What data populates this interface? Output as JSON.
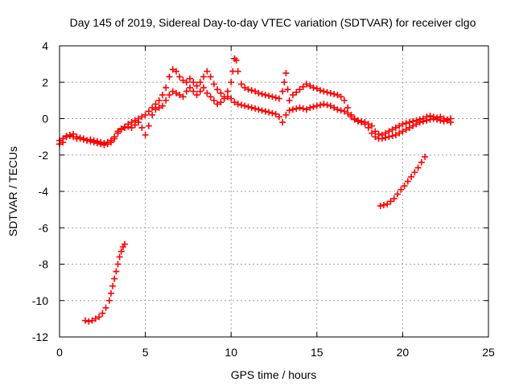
{
  "chart_data": {
    "type": "scatter",
    "title": "Day 145 of 2019, Sidereal Day-to-day VTEC variation (SDTVAR) for receiver clgo",
    "xlabel": "GPS time / hours",
    "ylabel": "SDTVAR / TECUs",
    "xlim": [
      0,
      25
    ],
    "ylim": [
      -12,
      4
    ],
    "xticks": [
      0,
      5,
      10,
      15,
      20,
      25
    ],
    "yticks": [
      -12,
      -10,
      -8,
      -6,
      -4,
      -2,
      0,
      2,
      4
    ],
    "grid": true,
    "marker": "plus",
    "color": "#ff0000",
    "series": [
      {
        "name": "track-main-upper",
        "points": [
          [
            0.0,
            -1.2
          ],
          [
            0.2,
            -1.1
          ],
          [
            0.4,
            -0.95
          ],
          [
            0.6,
            -0.9
          ],
          [
            0.8,
            -0.85
          ],
          [
            1.0,
            -1.0
          ],
          [
            1.2,
            -1.1
          ],
          [
            1.4,
            -1.15
          ],
          [
            1.6,
            -1.2
          ],
          [
            1.8,
            -1.15
          ],
          [
            2.0,
            -1.2
          ],
          [
            2.2,
            -1.25
          ],
          [
            2.4,
            -1.3
          ],
          [
            2.6,
            -1.35
          ],
          [
            2.8,
            -1.3
          ],
          [
            3.0,
            -1.2
          ],
          [
            3.2,
            -1.1
          ],
          [
            3.4,
            -0.8
          ],
          [
            3.6,
            -0.6
          ],
          [
            3.8,
            -0.45
          ],
          [
            4.0,
            -0.3
          ],
          [
            4.2,
            -0.2
          ],
          [
            4.4,
            -0.1
          ],
          [
            4.6,
            0.0
          ],
          [
            4.8,
            0.1
          ],
          [
            5.0,
            0.2
          ],
          [
            5.2,
            0.4
          ],
          [
            5.4,
            0.6
          ],
          [
            5.6,
            0.8
          ],
          [
            5.8,
            1.0
          ],
          [
            6.0,
            1.3
          ],
          [
            6.2,
            1.7
          ],
          [
            6.4,
            2.3
          ],
          [
            6.6,
            2.7
          ],
          [
            6.8,
            2.6
          ],
          [
            7.0,
            2.3
          ],
          [
            7.2,
            2.1
          ],
          [
            7.4,
            2.0
          ],
          [
            7.6,
            2.2
          ],
          [
            7.8,
            2.0
          ],
          [
            8.0,
            1.8
          ],
          [
            8.2,
            2.0
          ],
          [
            8.4,
            2.3
          ],
          [
            8.6,
            2.6
          ],
          [
            8.8,
            2.3
          ],
          [
            9.0,
            1.9
          ],
          [
            9.2,
            1.6
          ],
          [
            9.4,
            1.4
          ],
          [
            9.6,
            1.2
          ],
          [
            9.8,
            1.5
          ],
          [
            10.0,
            2.0
          ],
          [
            10.1,
            2.6
          ],
          [
            10.2,
            3.3
          ],
          [
            10.3,
            3.2
          ],
          [
            10.4,
            2.6
          ],
          [
            10.6,
            1.9
          ],
          [
            10.8,
            1.7
          ],
          [
            11.0,
            1.6
          ],
          [
            11.2,
            1.55
          ],
          [
            11.4,
            1.5
          ],
          [
            11.6,
            1.4
          ],
          [
            11.8,
            1.35
          ],
          [
            12.0,
            1.3
          ],
          [
            12.2,
            1.25
          ],
          [
            12.4,
            1.2
          ],
          [
            12.6,
            1.15
          ],
          [
            12.8,
            1.1
          ],
          [
            13.0,
            1.5
          ],
          [
            13.1,
            2.0
          ],
          [
            13.2,
            2.5
          ],
          [
            13.3,
            1.6
          ],
          [
            13.4,
            1.0
          ],
          [
            13.6,
            1.3
          ],
          [
            13.8,
            1.45
          ],
          [
            14.0,
            1.6
          ],
          [
            14.2,
            1.75
          ],
          [
            14.4,
            1.9
          ],
          [
            14.6,
            1.8
          ],
          [
            14.8,
            1.7
          ],
          [
            15.0,
            1.65
          ],
          [
            15.2,
            1.55
          ],
          [
            15.4,
            1.5
          ],
          [
            15.6,
            1.45
          ],
          [
            15.8,
            1.4
          ],
          [
            16.0,
            1.35
          ],
          [
            16.2,
            1.3
          ],
          [
            16.4,
            1.2
          ],
          [
            16.6,
            1.0
          ],
          [
            16.8,
            0.6
          ],
          [
            17.0,
            0.2
          ],
          [
            17.2,
            0.0
          ],
          [
            17.4,
            -0.1
          ],
          [
            17.6,
            -0.15
          ],
          [
            17.8,
            -0.2
          ],
          [
            18.0,
            -0.3
          ],
          [
            18.2,
            -0.4
          ],
          [
            18.4,
            -0.7
          ],
          [
            18.6,
            -0.85
          ],
          [
            18.8,
            -0.9
          ],
          [
            19.0,
            -0.8
          ],
          [
            19.2,
            -0.7
          ],
          [
            19.4,
            -0.6
          ],
          [
            19.6,
            -0.5
          ],
          [
            19.8,
            -0.4
          ],
          [
            20.0,
            -0.3
          ],
          [
            20.2,
            -0.25
          ],
          [
            20.4,
            -0.2
          ],
          [
            20.6,
            -0.15
          ],
          [
            20.8,
            -0.1
          ],
          [
            21.0,
            -0.05
          ],
          [
            21.2,
            0.0
          ],
          [
            21.4,
            0.1
          ],
          [
            21.6,
            0.15
          ],
          [
            21.8,
            0.1
          ],
          [
            22.0,
            0.05
          ],
          [
            22.2,
            0.1
          ],
          [
            22.4,
            0.0
          ],
          [
            22.6,
            -0.05
          ],
          [
            22.8,
            0.0
          ]
        ]
      },
      {
        "name": "track-main-lower",
        "points": [
          [
            0.0,
            -1.4
          ],
          [
            0.2,
            -1.3
          ],
          [
            0.4,
            -1.0
          ],
          [
            0.6,
            -0.95
          ],
          [
            0.8,
            -1.0
          ],
          [
            1.0,
            -1.1
          ],
          [
            1.2,
            -1.05
          ],
          [
            1.4,
            -1.1
          ],
          [
            1.6,
            -1.2
          ],
          [
            1.8,
            -1.25
          ],
          [
            2.0,
            -1.3
          ],
          [
            2.2,
            -1.35
          ],
          [
            2.4,
            -1.4
          ],
          [
            2.6,
            -1.45
          ],
          [
            2.8,
            -1.4
          ],
          [
            3.0,
            -1.3
          ],
          [
            3.2,
            -1.0
          ],
          [
            3.4,
            -0.7
          ],
          [
            3.6,
            -0.55
          ],
          [
            3.8,
            -0.5
          ],
          [
            4.0,
            -0.45
          ],
          [
            4.2,
            -0.5
          ],
          [
            4.4,
            -0.35
          ],
          [
            4.6,
            -0.2
          ],
          [
            4.8,
            -0.5
          ],
          [
            5.0,
            -0.9
          ],
          [
            5.2,
            -0.4
          ],
          [
            5.4,
            0.2
          ],
          [
            5.6,
            0.5
          ],
          [
            5.8,
            0.6
          ],
          [
            6.0,
            0.7
          ],
          [
            6.2,
            1.0
          ],
          [
            6.4,
            1.3
          ],
          [
            6.6,
            1.5
          ],
          [
            6.8,
            1.4
          ],
          [
            7.0,
            1.3
          ],
          [
            7.2,
            1.2
          ],
          [
            7.4,
            1.5
          ],
          [
            7.6,
            1.7
          ],
          [
            7.8,
            1.5
          ],
          [
            8.0,
            1.3
          ],
          [
            8.2,
            1.5
          ],
          [
            8.4,
            1.7
          ],
          [
            8.6,
            1.4
          ],
          [
            8.8,
            1.2
          ],
          [
            9.0,
            1.0
          ],
          [
            9.2,
            0.8
          ],
          [
            9.4,
            0.9
          ],
          [
            9.6,
            1.1
          ],
          [
            9.8,
            1.2
          ],
          [
            10.0,
            1.1
          ],
          [
            10.2,
            0.9
          ],
          [
            10.4,
            0.8
          ],
          [
            10.6,
            0.75
          ],
          [
            10.8,
            0.7
          ],
          [
            11.0,
            0.65
          ],
          [
            11.2,
            0.6
          ],
          [
            11.4,
            0.55
          ],
          [
            11.6,
            0.5
          ],
          [
            11.8,
            0.45
          ],
          [
            12.0,
            0.4
          ],
          [
            12.2,
            0.35
          ],
          [
            12.4,
            0.3
          ],
          [
            12.6,
            0.25
          ],
          [
            12.8,
            0.1
          ],
          [
            13.0,
            -0.2
          ],
          [
            13.2,
            0.2
          ],
          [
            13.4,
            0.45
          ],
          [
            13.6,
            0.5
          ],
          [
            13.8,
            0.55
          ],
          [
            14.0,
            0.6
          ],
          [
            14.2,
            0.55
          ],
          [
            14.4,
            0.5
          ],
          [
            14.6,
            0.6
          ],
          [
            14.8,
            0.65
          ],
          [
            15.0,
            0.7
          ],
          [
            15.2,
            0.75
          ],
          [
            15.4,
            0.8
          ],
          [
            15.6,
            0.75
          ],
          [
            15.8,
            0.7
          ],
          [
            16.0,
            0.6
          ],
          [
            16.2,
            0.5
          ],
          [
            16.4,
            0.45
          ],
          [
            16.6,
            0.4
          ],
          [
            16.8,
            0.3
          ],
          [
            17.0,
            0.1
          ],
          [
            17.2,
            -0.05
          ],
          [
            17.4,
            -0.15
          ],
          [
            17.6,
            -0.2
          ],
          [
            17.8,
            -0.3
          ],
          [
            18.0,
            -0.5
          ],
          [
            18.2,
            -0.8
          ],
          [
            18.4,
            -1.0
          ],
          [
            18.6,
            -1.1
          ],
          [
            18.8,
            -1.1
          ],
          [
            19.0,
            -1.05
          ],
          [
            19.2,
            -1.0
          ],
          [
            19.4,
            -0.95
          ],
          [
            19.6,
            -0.9
          ],
          [
            19.8,
            -0.8
          ],
          [
            20.0,
            -0.7
          ],
          [
            20.2,
            -0.6
          ],
          [
            20.4,
            -0.5
          ],
          [
            20.6,
            -0.4
          ],
          [
            20.8,
            -0.3
          ],
          [
            21.0,
            -0.2
          ],
          [
            21.2,
            -0.15
          ],
          [
            21.4,
            -0.1
          ],
          [
            21.6,
            -0.05
          ],
          [
            21.8,
            0.0
          ],
          [
            22.0,
            -0.05
          ],
          [
            22.2,
            -0.1
          ],
          [
            22.4,
            -0.15
          ],
          [
            22.6,
            -0.1
          ],
          [
            22.8,
            -0.2
          ]
        ]
      },
      {
        "name": "track-early-drop",
        "points": [
          [
            1.5,
            -11.1
          ],
          [
            1.7,
            -11.15
          ],
          [
            1.9,
            -11.1
          ],
          [
            2.1,
            -11.0
          ],
          [
            2.3,
            -10.9
          ],
          [
            2.5,
            -10.7
          ],
          [
            2.7,
            -10.4
          ],
          [
            2.9,
            -10.0
          ],
          [
            3.0,
            -9.6
          ],
          [
            3.1,
            -9.2
          ],
          [
            3.2,
            -8.8
          ],
          [
            3.3,
            -8.4
          ],
          [
            3.4,
            -8.0
          ],
          [
            3.5,
            -7.6
          ],
          [
            3.6,
            -7.3
          ],
          [
            3.7,
            -7.05
          ],
          [
            3.8,
            -6.9
          ]
        ]
      },
      {
        "name": "track-late-rise",
        "points": [
          [
            18.7,
            -4.8
          ],
          [
            18.9,
            -4.75
          ],
          [
            19.1,
            -4.7
          ],
          [
            19.3,
            -4.55
          ],
          [
            19.5,
            -4.4
          ],
          [
            19.7,
            -4.15
          ],
          [
            19.9,
            -3.9
          ],
          [
            20.1,
            -3.7
          ],
          [
            20.3,
            -3.45
          ],
          [
            20.5,
            -3.2
          ],
          [
            20.7,
            -2.95
          ],
          [
            20.9,
            -2.7
          ],
          [
            21.1,
            -2.4
          ],
          [
            21.3,
            -2.1
          ]
        ]
      }
    ]
  }
}
